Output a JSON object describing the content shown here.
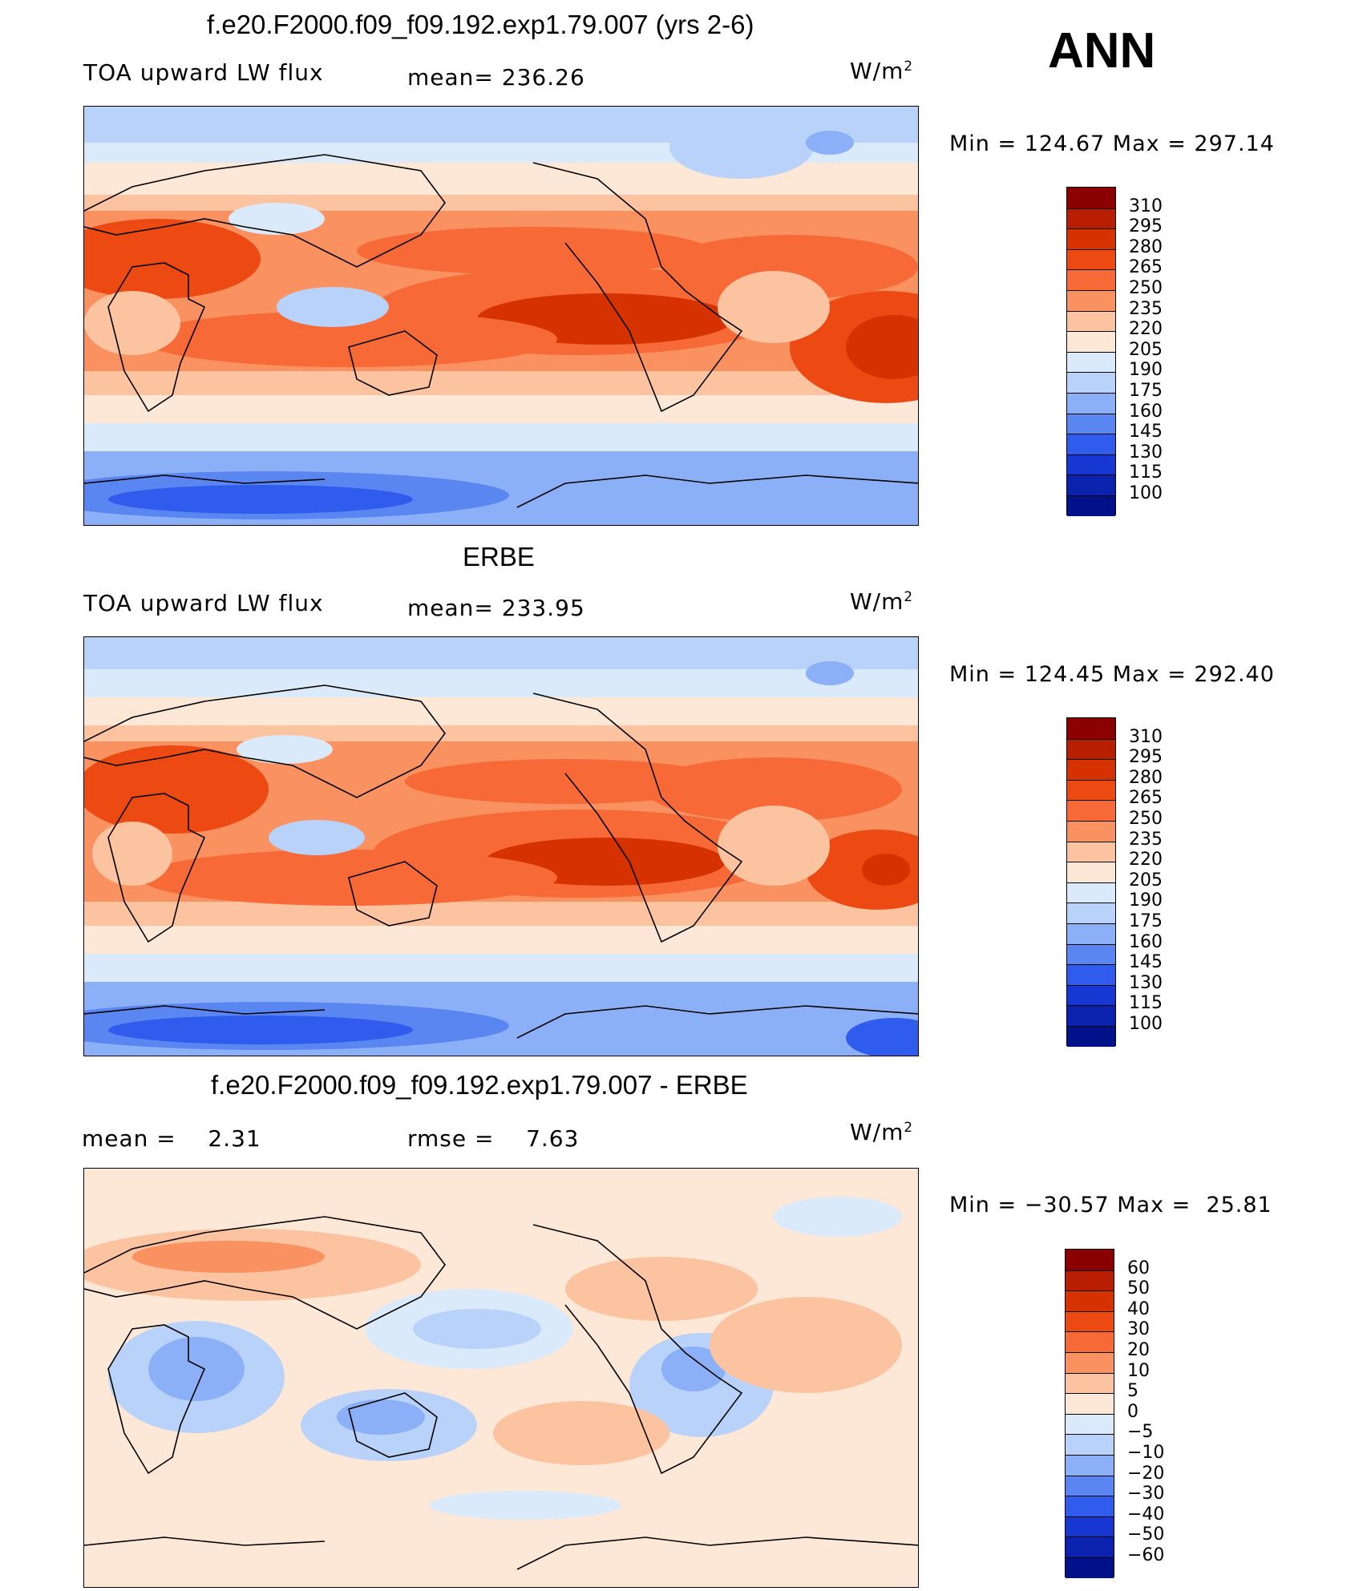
{
  "header": {
    "season": "ANN",
    "units": "W/m",
    "units_sup": "2"
  },
  "chart_data": [
    {
      "type": "heatmap",
      "title": "f.e20.F2000.f09_f09.192.exp1.79.007 (yrs 2-6)",
      "variable": "TOA upward LW flux",
      "mean_label": "mean=",
      "mean": "236.26",
      "min_label": "Min  =",
      "min": "124.67",
      "max_label": "Max  =",
      "max": "297.14",
      "colorbar": {
        "levels": [
          "310",
          "295",
          "280",
          "265",
          "250",
          "235",
          "220",
          "205",
          "190",
          "175",
          "160",
          "145",
          "130",
          "115",
          "100"
        ],
        "colors": [
          "#8b0000",
          "#b81e00",
          "#d53200",
          "#ec4a12",
          "#f76a38",
          "#fa9160",
          "#fcc3a0",
          "#fde7d6",
          "#dbeafb",
          "#b9d2fa",
          "#8cb0f7",
          "#5a86f2",
          "#2f5ced",
          "#1737d3",
          "#0b22ae",
          "#00118a"
        ]
      }
    },
    {
      "type": "heatmap",
      "title": "ERBE",
      "variable": "TOA upward LW flux",
      "mean_label": "mean=",
      "mean": "233.95",
      "min_label": "Min  =",
      "min": "124.45",
      "max_label": "Max  =",
      "max": "292.40",
      "colorbar": {
        "levels": [
          "310",
          "295",
          "280",
          "265",
          "250",
          "235",
          "220",
          "205",
          "190",
          "175",
          "160",
          "145",
          "130",
          "115",
          "100"
        ],
        "colors": [
          "#8b0000",
          "#b81e00",
          "#d53200",
          "#ec4a12",
          "#f76a38",
          "#fa9160",
          "#fcc3a0",
          "#fde7d6",
          "#dbeafb",
          "#b9d2fa",
          "#8cb0f7",
          "#5a86f2",
          "#2f5ced",
          "#1737d3",
          "#0b22ae",
          "#00118a"
        ]
      }
    },
    {
      "type": "heatmap",
      "title": "f.e20.F2000.f09_f09.192.exp1.79.007 - ERBE",
      "mean_label": "mean  =",
      "mean": "2.31",
      "rmse_label": "rmse  =",
      "rmse": "7.63",
      "min_label": "Min  =",
      "min": "−30.57",
      "max_label": "Max  =",
      "max": "25.81",
      "colorbar": {
        "levels": [
          "60",
          "50",
          "40",
          "30",
          "20",
          "10",
          "5",
          "0",
          "−5",
          "−10",
          "−20",
          "−30",
          "−40",
          "−50",
          "−60"
        ],
        "colors": [
          "#8b0000",
          "#b81e00",
          "#d53200",
          "#ec4a12",
          "#f76a38",
          "#fa9160",
          "#fcc3a0",
          "#fde7d6",
          "#dbeafb",
          "#b9d2fa",
          "#8cb0f7",
          "#5a86f2",
          "#2f5ced",
          "#1737d3",
          "#0b22ae",
          "#00118a"
        ]
      }
    }
  ]
}
